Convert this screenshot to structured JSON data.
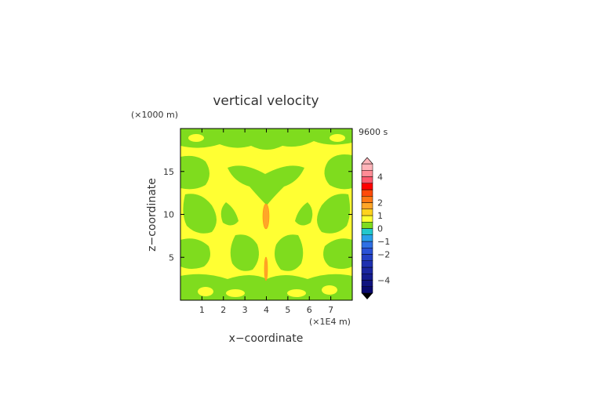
{
  "chart_data": {
    "type": "heatmap",
    "title": "vertical velocity",
    "time_label": "9600 s",
    "xlabel": "x−coordinate",
    "ylabel": "z−coordinate",
    "x_unit": "(×1E4 m)",
    "y_unit": "(×1000 m)",
    "xlim": [
      0,
      8
    ],
    "ylim": [
      0,
      20
    ],
    "x_ticks": [
      1,
      2,
      3,
      4,
      5,
      6,
      7
    ],
    "x_tick_labels": [
      "1",
      "2",
      "3",
      "4",
      "5",
      "6",
      "7"
    ],
    "y_ticks": [
      5,
      10,
      15
    ],
    "y_tick_labels": [
      "5",
      "10",
      "15"
    ],
    "colorbar": {
      "min": -5,
      "max": 5,
      "step": 0.5,
      "tick_values": [
        4,
        2,
        1,
        0,
        -1,
        -2,
        -4
      ],
      "tick_labels": [
        "4",
        "2",
        "1",
        "0",
        "−1",
        "−2",
        "−4"
      ],
      "colors": {
        "-5.0": "#0a0a6e",
        "-4.5": "#10137f",
        "-4.0": "#141c8f",
        "-3.5": "#1a26a0",
        "-3.0": "#1e30b0",
        "-2.5": "#2340c4",
        "-2.0": "#2a52d6",
        "-1.5": "#2f70e4",
        "-1.0": "#2aa0ea",
        "-0.5": "#22c8cc",
        "0.0": "#7fdc1e",
        "0.5": "#ffff33",
        "1.0": "#ffd21e",
        "1.5": "#ffa528",
        "2.0": "#ff7814",
        "2.5": "#ff4b0a",
        "3.0": "#ff0000",
        "3.5": "#ff5a6e",
        "4.0": "#ff8c96",
        "4.5": "#ffb4b9"
      }
    },
    "fields_note": "w in m/s: mostly 0 to 0.5 (yellow) with bands of -0.5 to 0 (green), peak >1 near x=4",
    "features": [
      {
        "kind": "positive_max",
        "x": 4.0,
        "z": 10.0,
        "value_range": [
          1,
          1.5
        ]
      },
      {
        "kind": "positive_max",
        "x": 4.0,
        "z": 3.6,
        "value_range": [
          1,
          1.5
        ]
      }
    ]
  }
}
